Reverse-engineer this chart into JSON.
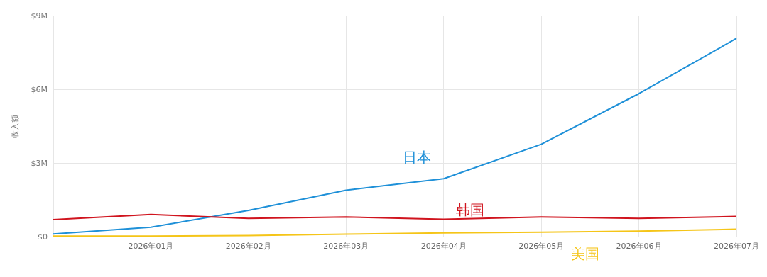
{
  "chart_data": {
    "type": "line",
    "ylabel": "收入额",
    "categories": [
      null,
      "2026年01月",
      "2026年02月",
      "2026年03月",
      "2026年04月",
      "2026年05月",
      "2026年06月",
      "2026年07月"
    ],
    "ylim": [
      0,
      9
    ],
    "yticks": [
      {
        "value": 0,
        "label": "$0"
      },
      {
        "value": 3,
        "label": "$3M"
      },
      {
        "value": 6,
        "label": "$6M"
      },
      {
        "value": 9,
        "label": "$9M"
      }
    ],
    "grid": true,
    "legend": false,
    "marker": "none",
    "line_style": "solid",
    "series": [
      {
        "name": "日本",
        "color": "#1e90d8",
        "values": [
          0.11,
          0.38,
          1.07,
          1.89,
          2.36,
          3.76,
          5.82,
          8.07
        ]
      },
      {
        "name": "韩国",
        "color": "#d0141e",
        "values": [
          0.69,
          0.9,
          0.74,
          0.8,
          0.71,
          0.8,
          0.74,
          0.82
        ]
      },
      {
        "name": "美国",
        "color": "#f5c518",
        "values": [
          0.02,
          0.02,
          0.04,
          0.1,
          0.15,
          0.18,
          0.22,
          0.3
        ]
      }
    ]
  }
}
